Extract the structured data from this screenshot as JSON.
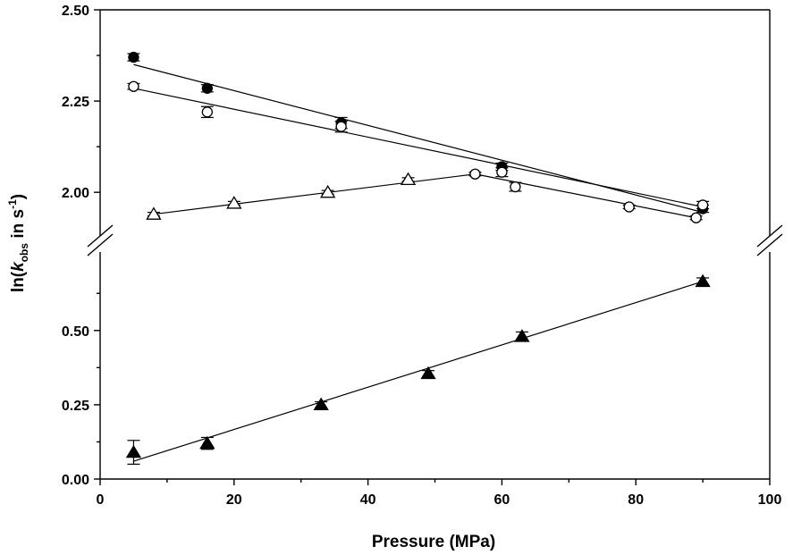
{
  "chart_data": {
    "type": "scatter",
    "title": "",
    "xlabel": "Pressure (MPa)",
    "ylabel": {
      "prefix": "ln(",
      "k": "k",
      "sub": "obs",
      "mid": " in s",
      "sup": "-1",
      "suffix": ")"
    },
    "xlim": [
      0,
      100
    ],
    "xticks": [
      "0",
      "20",
      "40",
      "60",
      "80",
      "100"
    ],
    "upper_panel": {
      "ylim": [
        1.9,
        2.5
      ],
      "yticks": [
        "2.00",
        "2.25",
        "2.50"
      ]
    },
    "lower_panel": {
      "ylim": [
        0.0,
        0.74
      ],
      "yticks": [
        "0.00",
        "0.25",
        "0.50"
      ]
    },
    "axis_break": true,
    "grid": false,
    "series": [
      {
        "panel": "upper",
        "marker": "filled-circle",
        "x": [
          5,
          16,
          36,
          60,
          90
        ],
        "y": [
          2.37,
          2.285,
          2.19,
          2.07,
          1.955
        ],
        "err": [
          0.01,
          0.01,
          0.015,
          0.01,
          0.01
        ],
        "fit": [
          [
            5,
            2.35
          ],
          [
            90,
            1.945
          ]
        ]
      },
      {
        "panel": "upper",
        "marker": "open-circle",
        "x": [
          5,
          16,
          36,
          60,
          90
        ],
        "y": [
          2.29,
          2.22,
          2.18,
          2.055,
          1.965
        ],
        "err": [
          0.008,
          0.015,
          0.015,
          0.012,
          0.01
        ],
        "fit": [
          [
            5,
            2.285
          ],
          [
            90,
            1.96
          ]
        ]
      },
      {
        "panel": "upper",
        "marker": "open-triangle",
        "x": [
          8,
          20,
          34,
          46
        ],
        "y": [
          1.94,
          1.97,
          2.0,
          2.035
        ],
        "err": [
          0.005,
          0.005,
          0.005,
          0.005
        ],
        "fit": [
          [
            8,
            1.94
          ],
          [
            56,
            2.05
          ]
        ]
      },
      {
        "panel": "upper",
        "marker": "open-circle",
        "x": [
          56,
          62,
          79,
          89
        ],
        "y": [
          2.05,
          2.015,
          1.96,
          1.93
        ],
        "err": [
          0.005,
          0.012,
          0.005,
          0.005
        ],
        "fit": [
          [
            56,
            2.05
          ],
          [
            89,
            1.93
          ]
        ]
      },
      {
        "panel": "lower",
        "marker": "filled-triangle",
        "x": [
          5,
          16,
          33,
          49,
          63,
          90
        ],
        "y": [
          0.09,
          0.12,
          0.25,
          0.355,
          0.48,
          0.665
        ],
        "err": [
          0.04,
          0.02,
          0.01,
          0.01,
          0.015,
          0.012
        ],
        "fit": [
          [
            5,
            0.06
          ],
          [
            90,
            0.665
          ]
        ]
      }
    ]
  }
}
